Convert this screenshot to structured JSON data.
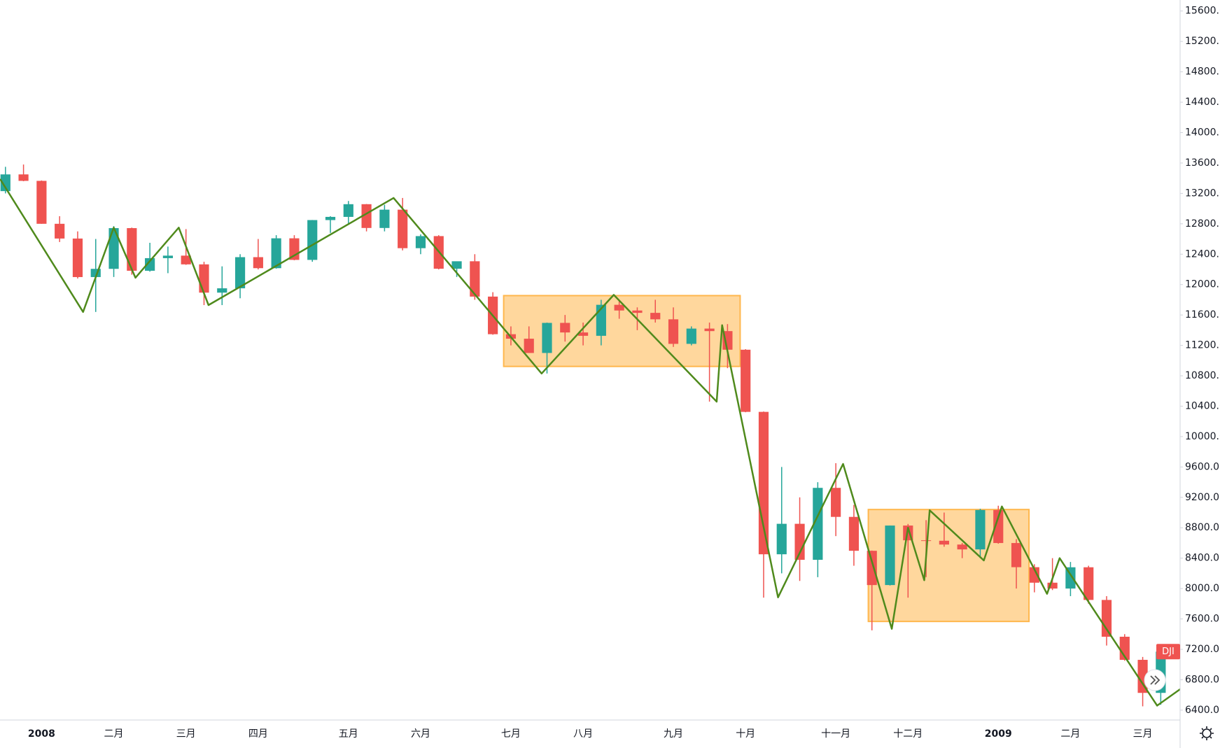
{
  "chart_data": {
    "type": "candlestick",
    "symbol": "DJI",
    "categories": [
      null,
      null,
      "2008",
      null,
      null,
      null,
      "二月",
      null,
      null,
      null,
      "三月",
      null,
      null,
      null,
      "四月",
      null,
      null,
      null,
      null,
      "五月",
      null,
      null,
      null,
      "六月",
      null,
      null,
      null,
      null,
      "七月",
      null,
      null,
      null,
      "八月",
      null,
      null,
      null,
      null,
      "九月",
      null,
      null,
      null,
      "十月",
      null,
      null,
      null,
      null,
      "十一月",
      null,
      null,
      null,
      "十二月",
      null,
      null,
      null,
      null,
      "2009",
      null,
      null,
      null,
      "二月",
      null,
      null,
      null,
      "三月",
      null
    ],
    "open": [
      13230,
      13450,
      13365,
      12800,
      12606,
      12099,
      12207,
      12743,
      12182,
      12348,
      12381,
      12266,
      11894,
      11951,
      12361,
      12216,
      12609,
      12325,
      12849,
      12891,
      13058,
      12745,
      12986,
      12479,
      12638,
      12209,
      12307,
      11842,
      11347,
      11288,
      11100,
      11496,
      11370,
      11326,
      11734,
      11659,
      11628,
      11543,
      11220,
      11421,
      11388,
      11143,
      10325,
      8451,
      8852,
      8378,
      9325,
      8943,
      8497,
      8046,
      8829,
      8635,
      8629,
      8579,
      8515,
      9034,
      8599,
      8281,
      8077,
      8000,
      8280,
      7850,
      7366,
      7062,
      6627
    ],
    "high": [
      13550,
      13580,
      13370,
      12900,
      12700,
      12600,
      12770,
      12750,
      12550,
      12500,
      12730,
      12300,
      12240,
      12400,
      12600,
      12650,
      12650,
      12850,
      12900,
      13100,
      13060,
      13050,
      13140,
      12660,
      12650,
      12300,
      12400,
      11900,
      11450,
      11450,
      11500,
      11600,
      11500,
      11800,
      11800,
      11700,
      11800,
      11700,
      11450,
      11500,
      11480,
      11150,
      10330,
      9600,
      9200,
      9400,
      9650,
      9100,
      8500,
      8830,
      8850,
      8900,
      9000,
      8600,
      9050,
      9090,
      8650,
      8320,
      8400,
      8350,
      8300,
      7900,
      7400,
      7100,
      7200
    ],
    "low": [
      13200,
      13360,
      12800,
      12560,
      12080,
      11640,
      12100,
      12130,
      12170,
      12150,
      12260,
      11730,
      11730,
      11820,
      12200,
      12210,
      12320,
      12300,
      12680,
      12800,
      12700,
      12700,
      12450,
      12400,
      12200,
      12100,
      11800,
      11340,
      11200,
      11100,
      10830,
      11250,
      11200,
      11200,
      11550,
      11400,
      11500,
      11180,
      11200,
      10460,
      10900,
      10320,
      7880,
      8200,
      8100,
      8150,
      8690,
      8300,
      7450,
      8040,
      7880,
      8150,
      8550,
      8400,
      8400,
      8590,
      8000,
      7950,
      7980,
      7900,
      7800,
      7250,
      7050,
      6450,
      6470
    ],
    "close": [
      13450,
      13365,
      12800,
      12606,
      12099,
      12207,
      12743,
      12182,
      12348,
      12381,
      12266,
      11894,
      11951,
      12361,
      12216,
      12609,
      12325,
      12849,
      12891,
      13058,
      12745,
      12986,
      12479,
      12638,
      12209,
      12307,
      11842,
      11347,
      11288,
      11100,
      11496,
      11370,
      11326,
      11734,
      11659,
      11628,
      11543,
      11220,
      11421,
      11388,
      11143,
      10325,
      8451,
      8852,
      8378,
      9325,
      8943,
      8497,
      8046,
      8829,
      8635,
      8629,
      8579,
      8515,
      9034,
      8599,
      8281,
      8077,
      8000,
      8280,
      7850,
      7366,
      7062,
      6627,
      7170
    ],
    "up_color": "#26a69a",
    "down_color": "#ef5350",
    "ylim": [
      6270,
      15745
    ],
    "yticks": [
      {
        "value": 6400,
        "label": "6400.0"
      },
      {
        "value": 6800,
        "label": "6800.0"
      },
      {
        "value": 7200,
        "label": "7200.0"
      },
      {
        "value": 7600,
        "label": "7600.0"
      },
      {
        "value": 8000,
        "label": "8000.0"
      },
      {
        "value": 8400,
        "label": "8400.0"
      },
      {
        "value": 8800,
        "label": "8800.0"
      },
      {
        "value": 9200,
        "label": "9200.0"
      },
      {
        "value": 9600,
        "label": "9600.0"
      },
      {
        "value": 10000,
        "label": "10000.0"
      },
      {
        "value": 10400,
        "label": "10400.0"
      },
      {
        "value": 10800,
        "label": "10800.0"
      },
      {
        "value": 11200,
        "label": "11200.0"
      },
      {
        "value": 11600,
        "label": "11600.0"
      },
      {
        "value": 12000,
        "label": "12000.0"
      },
      {
        "value": 12400,
        "label": "12400.0"
      },
      {
        "value": 12800,
        "label": "12800.0"
      },
      {
        "value": 13200,
        "label": "13200.0"
      },
      {
        "value": 13600,
        "label": "13600.0"
      },
      {
        "value": 14000,
        "label": "14000.0"
      },
      {
        "value": 14400,
        "label": "14400.0"
      },
      {
        "value": 14800,
        "label": "14800.0"
      },
      {
        "value": 15200,
        "label": "15200.0"
      },
      {
        "value": 15600,
        "label": "15600.0"
      }
    ],
    "zigzag": {
      "color": "#4f8a1c",
      "x": [
        -0.3,
        4.3,
        6.0,
        7.2,
        9.6,
        11.25,
        21.5,
        29.7,
        33.7,
        39.4,
        39.7,
        42.8,
        46.4,
        49.1,
        50.0,
        50.9,
        51.2,
        54.2,
        55.2,
        57.7,
        58.4,
        63.8,
        65.1
      ],
      "values": [
        13390,
        11640,
        12750,
        12090,
        12750,
        11730,
        13140,
        10830,
        11865,
        10460,
        11466,
        7884,
        9640,
        7470,
        8800,
        8110,
        9030,
        8370,
        9080,
        7930,
        8400,
        6460,
        6680
      ]
    },
    "ranges": [
      {
        "x": [
          27.6,
          40.7
        ],
        "y": [
          10923,
          11855
        ],
        "color": "#ffb74d"
      },
      {
        "x": [
          47.8,
          56.7
        ],
        "y": [
          7567,
          9040
        ],
        "color": "#ffb74d"
      }
    ]
  }
}
